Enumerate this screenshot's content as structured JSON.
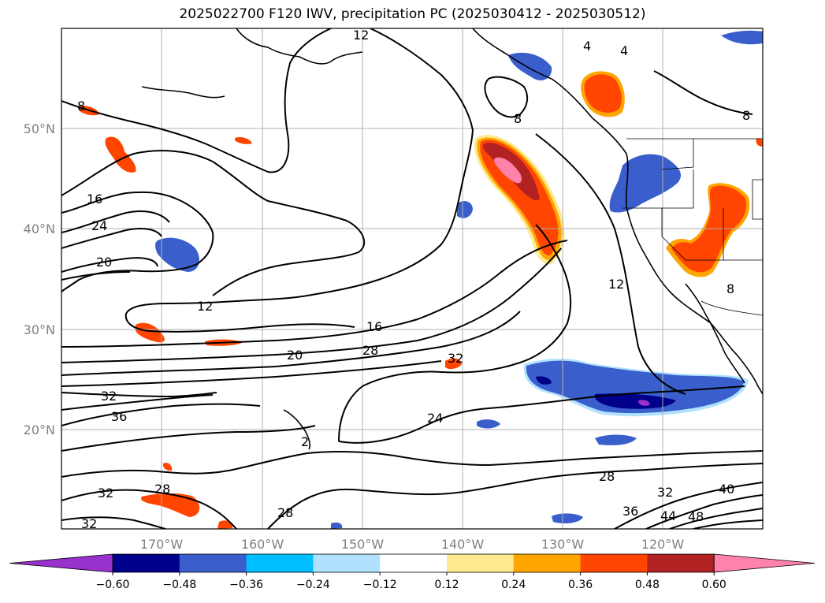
{
  "title": "2025022700 F120 IWV, precipitation PC (2025030412 - 2025030512)",
  "lat_labels": [
    "50°N",
    "40°N",
    "30°N",
    "20°N"
  ],
  "lon_labels": [
    "170°W",
    "160°W",
    "150°W",
    "140°W",
    "130°W",
    "120°W"
  ],
  "contour_labels": [
    {
      "text": "12",
      "key": "c12a"
    },
    {
      "text": "4",
      "key": "c4a"
    },
    {
      "text": "4",
      "key": "c4b"
    },
    {
      "text": "8",
      "key": "c8a"
    },
    {
      "text": "8",
      "key": "c8b"
    },
    {
      "text": "8",
      "key": "c8c"
    },
    {
      "text": "16",
      "key": "c16a"
    },
    {
      "text": "24",
      "key": "c24a"
    },
    {
      "text": "20",
      "key": "c20a"
    },
    {
      "text": "12",
      "key": "c12b"
    },
    {
      "text": "16",
      "key": "c16b"
    },
    {
      "text": "20",
      "key": "c20b"
    },
    {
      "text": "28",
      "key": "c28a"
    },
    {
      "text": "32",
      "key": "c32a"
    },
    {
      "text": "12",
      "key": "c12c"
    },
    {
      "text": "32",
      "key": "c32b"
    },
    {
      "text": "36",
      "key": "c36a"
    },
    {
      "text": "24",
      "key": "c24b"
    },
    {
      "text": "2",
      "key": "c2a"
    },
    {
      "text": "28",
      "key": "c28b"
    },
    {
      "text": "32",
      "key": "c32c"
    },
    {
      "text": "28",
      "key": "c28c"
    },
    {
      "text": "32",
      "key": "c32d"
    },
    {
      "text": "28",
      "key": "c28d"
    },
    {
      "text": "32",
      "key": "c32e"
    },
    {
      "text": "40",
      "key": "c40a"
    },
    {
      "text": "36",
      "key": "c36b"
    },
    {
      "text": "44",
      "key": "c44a"
    },
    {
      "text": "48",
      "key": "c48a"
    },
    {
      "text": "8",
      "key": "c8d"
    }
  ],
  "colorbar": {
    "ticks": [
      "−0.60",
      "−0.48",
      "−0.36",
      "−0.24",
      "−0.12",
      "0.12",
      "0.24",
      "0.36",
      "0.48",
      "0.60"
    ],
    "colors": [
      "#9932cc",
      "#00008b",
      "#3a5fcd",
      "#00bfff",
      "#b0e2ff",
      "#ffffff",
      "#fde98e",
      "#ffa500",
      "#ff4500",
      "#b22222",
      "#ff82ab"
    ]
  },
  "palette": {
    "neg_strong": "#00008b",
    "neg_mid": "#3a5fcd",
    "neg_light": "#00bfff",
    "neg_pale": "#b0e2ff",
    "pos_pale": "#fde98e",
    "pos_light": "#ffa500",
    "pos_mid": "#ff4500",
    "pos_strong": "#b22222",
    "pos_max": "#ff82ab",
    "neg_max": "#9932cc"
  }
}
